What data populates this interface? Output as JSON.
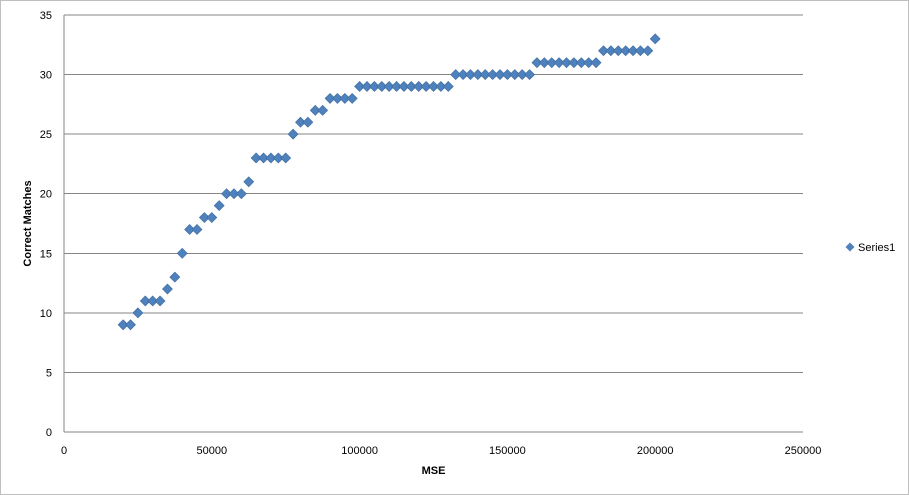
{
  "chart_data": {
    "type": "scatter",
    "title": "",
    "xlabel": "MSE",
    "ylabel": "Correct Matches",
    "xlim": [
      0,
      250000
    ],
    "ylim": [
      0,
      35
    ],
    "x_ticks": [
      0,
      50000,
      100000,
      150000,
      200000,
      250000
    ],
    "y_ticks": [
      0,
      5,
      10,
      15,
      20,
      25,
      30,
      35
    ],
    "grid": "horizontal",
    "legend_position": "right",
    "marker": "diamond",
    "color": "#4F81BD",
    "series": [
      {
        "name": "Series1",
        "points": [
          [
            20000,
            9
          ],
          [
            22500,
            9
          ],
          [
            25000,
            10
          ],
          [
            27500,
            11
          ],
          [
            30000,
            11
          ],
          [
            32500,
            11
          ],
          [
            35000,
            12
          ],
          [
            37500,
            13
          ],
          [
            40000,
            15
          ],
          [
            42500,
            17
          ],
          [
            45000,
            17
          ],
          [
            47500,
            18
          ],
          [
            50000,
            18
          ],
          [
            52500,
            19
          ],
          [
            55000,
            20
          ],
          [
            57500,
            20
          ],
          [
            60000,
            20
          ],
          [
            62500,
            21
          ],
          [
            65000,
            23
          ],
          [
            67500,
            23
          ],
          [
            70000,
            23
          ],
          [
            72500,
            23
          ],
          [
            75000,
            23
          ],
          [
            77500,
            25
          ],
          [
            80000,
            26
          ],
          [
            82500,
            26
          ],
          [
            85000,
            27
          ],
          [
            87500,
            27
          ],
          [
            90000,
            28
          ],
          [
            92500,
            28
          ],
          [
            95000,
            28
          ],
          [
            97500,
            28
          ],
          [
            100000,
            29
          ],
          [
            102500,
            29
          ],
          [
            105000,
            29
          ],
          [
            107500,
            29
          ],
          [
            110000,
            29
          ],
          [
            112500,
            29
          ],
          [
            115000,
            29
          ],
          [
            117500,
            29
          ],
          [
            120000,
            29
          ],
          [
            122500,
            29
          ],
          [
            125000,
            29
          ],
          [
            127500,
            29
          ],
          [
            130000,
            29
          ],
          [
            132500,
            30
          ],
          [
            135000,
            30
          ],
          [
            137500,
            30
          ],
          [
            140000,
            30
          ],
          [
            142500,
            30
          ],
          [
            145000,
            30
          ],
          [
            147500,
            30
          ],
          [
            150000,
            30
          ],
          [
            152500,
            30
          ],
          [
            155000,
            30
          ],
          [
            157500,
            30
          ],
          [
            160000,
            31
          ],
          [
            162500,
            31
          ],
          [
            165000,
            31
          ],
          [
            167500,
            31
          ],
          [
            170000,
            31
          ],
          [
            172500,
            31
          ],
          [
            175000,
            31
          ],
          [
            177500,
            31
          ],
          [
            180000,
            31
          ],
          [
            182500,
            32
          ],
          [
            185000,
            32
          ],
          [
            187500,
            32
          ],
          [
            190000,
            32
          ],
          [
            192500,
            32
          ],
          [
            195000,
            32
          ],
          [
            197500,
            32
          ],
          [
            200000,
            33
          ]
        ]
      }
    ]
  }
}
